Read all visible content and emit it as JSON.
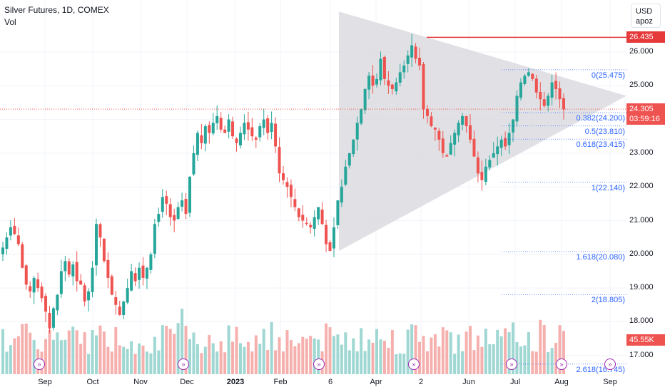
{
  "legend": {
    "symbol": "Silver Futures, 1D, COMEX",
    "volume_label": "Vol"
  },
  "unit_box": {
    "currency": "USD",
    "mode": "apoz"
  },
  "colors": {
    "up": "#26a69a",
    "down": "#ef5350",
    "vol_up": "#9fd7d2",
    "vol_down": "#f5b0ae",
    "triangle": "#d9dadf",
    "resistance": "#e5393a",
    "fib": "#2962ff",
    "event": "#9c27b0"
  },
  "price_tags": {
    "resistance": {
      "value": "26.435",
      "color": "#e5393a"
    },
    "last": {
      "value": "24.305",
      "countdown": "03:59:16",
      "color": "#ef5350"
    },
    "volume": {
      "value": "45.55K",
      "color": "#ef5350"
    }
  },
  "chart_data": {
    "type": "candlestick",
    "y_ticks": [
      "26.000",
      "25.000",
      "24.000",
      "23.000",
      "22.000",
      "21.000",
      "20.000",
      "19.000",
      "18.000",
      "17.000"
    ],
    "x_ticks": [
      {
        "label": "Sep",
        "bold": false
      },
      {
        "label": "Oct",
        "bold": false
      },
      {
        "label": "Nov",
        "bold": false
      },
      {
        "label": "Dec",
        "bold": false
      },
      {
        "label": "2023",
        "bold": true
      },
      {
        "label": "Feb",
        "bold": false
      },
      {
        "label": "6",
        "bold": false
      },
      {
        "label": "Apr",
        "bold": false
      },
      {
        "label": "2",
        "bold": false
      },
      {
        "label": "Jun",
        "bold": false
      },
      {
        "label": "Jul",
        "bold": false
      },
      {
        "label": "Aug",
        "bold": false
      },
      {
        "label": "Sep",
        "bold": false
      }
    ],
    "ylim": [
      16.7,
      27.5
    ],
    "resistance_level": 26.435,
    "last_price": 24.305,
    "fibonacci": [
      {
        "label": "0(25.475)",
        "value": 25.475
      },
      {
        "label": "0.382(24.200)",
        "value": 24.2
      },
      {
        "label": "0.5(23.810)",
        "value": 23.81
      },
      {
        "label": "0.618(23.415)",
        "value": 23.415
      },
      {
        "label": "1(22.140)",
        "value": 22.14
      },
      {
        "label": "1.618(20.080)",
        "value": 20.08
      },
      {
        "label": "2(18.805)",
        "value": 18.805
      },
      {
        "label": "2.618(16.745)",
        "value": 16.745
      }
    ],
    "closes": [
      20.2,
      20.5,
      20.8,
      20.6,
      20.3,
      19.6,
      19.1,
      18.9,
      19.3,
      19.0,
      18.7,
      18.3,
      17.8,
      18.4,
      18.8,
      19.5,
      19.8,
      19.4,
      19.7,
      19.2,
      19.1,
      18.6,
      18.9,
      19.6,
      20.9,
      20.5,
      19.8,
      19.3,
      18.8,
      18.5,
      18.2,
      18.6,
      19.0,
      19.5,
      19.2,
      19.6,
      19.3,
      19.6,
      20.0,
      20.9,
      21.2,
      21.7,
      21.5,
      21.1,
      21.0,
      21.4,
      21.6,
      21.2,
      22.3,
      23.0,
      23.6,
      23.3,
      23.8,
      23.6,
      23.9,
      24.1,
      23.7,
      23.6,
      24.0,
      23.5,
      23.3,
      23.6,
      23.9,
      23.7,
      23.5,
      23.4,
      23.8,
      24.0,
      23.6,
      23.9,
      23.2,
      22.4,
      22.2,
      22.0,
      21.7,
      21.4,
      21.1,
      21.0,
      20.9,
      20.8,
      21.1,
      21.4,
      20.9,
      20.3,
      20.1,
      20.8,
      21.6,
      22.0,
      22.6,
      23.0,
      23.4,
      23.9,
      24.3,
      24.9,
      25.3,
      25.0,
      25.2,
      25.8,
      25.2,
      25.0,
      24.9,
      25.1,
      25.4,
      25.6,
      25.9,
      26.2,
      25.8,
      25.6,
      24.3,
      24.1,
      23.8,
      23.7,
      23.4,
      23.0,
      22.9,
      23.3,
      23.6,
      23.9,
      24.1,
      23.8,
      23.4,
      22.9,
      22.4,
      22.2,
      22.6,
      22.8,
      23.0,
      23.2,
      23.4,
      23.2,
      23.6,
      24.0,
      24.7,
      25.1,
      25.3,
      25.4,
      25.2,
      24.8,
      24.6,
      24.4,
      24.7,
      25.1,
      24.9,
      24.6,
      24.3
    ],
    "triangle": {
      "apex_price_start_top": 27.2,
      "apex_price_start_bottom": 20.1,
      "apex_price": 24.7
    }
  },
  "event_icons": [
    "arrow",
    "arrow",
    "arrow",
    "arrow",
    "arrow",
    "arrow",
    "arrow",
    "bolt",
    "arrow"
  ]
}
